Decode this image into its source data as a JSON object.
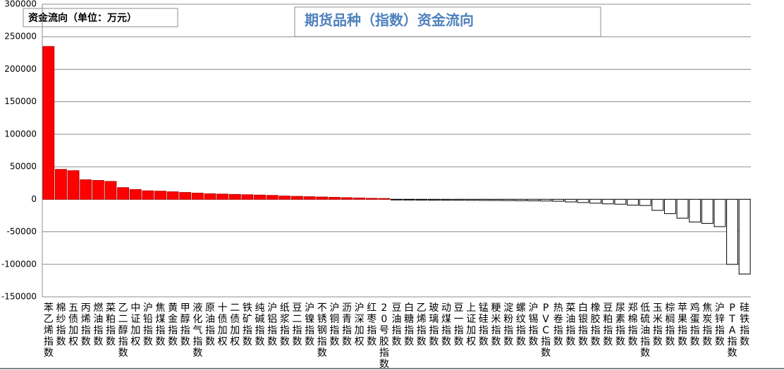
{
  "chart_data": {
    "type": "bar",
    "title": "期货品种（指数）资金流向",
    "unit_label": "资金流向（单位：万元）",
    "categories": [
      "苯乙烯指数",
      "棉纱指数",
      "五债加权",
      "丙烯指数",
      "燃油指数",
      "菜粕指数",
      "乙二醇指数",
      "中证加权",
      "沪铅指数",
      "焦煤指数",
      "黄金指数",
      "甲醇指数",
      "液化气指数",
      "原油指数",
      "十债加权",
      "二债加权",
      "铁矿指数",
      "纯碱指数",
      "沪铝指数",
      "纸浆指数",
      "豆二指数",
      "沪镍指数",
      "不锈钢指数",
      "沪铜指数",
      "沥青指数",
      "沪深加权",
      "红枣指数",
      "20号胶指数",
      "豆油指数",
      "白糖指数",
      "乙烯指数",
      "玻璃指数",
      "动煤指数",
      "豆一指数",
      "上证加权",
      "锰硅指数",
      "粳米指数",
      "淀粉指数",
      "螺纹指数",
      "沪锡指数",
      "PVC指数",
      "热卷指数",
      "菜油指数",
      "白银指数",
      "橡胶指数",
      "豆粕指数",
      "尿素指数",
      "郑棉指数",
      "低硫油指数",
      "玉米指数",
      "棕榈指数",
      "苹果指数",
      "鸡蛋指数",
      "焦炭指数",
      "沪锌指数",
      "PTA指数",
      "硅铁指数"
    ],
    "values": [
      235000,
      46000,
      44000,
      30000,
      29000,
      27500,
      18000,
      15000,
      13000,
      12500,
      11500,
      10500,
      9500,
      8500,
      8000,
      7500,
      7000,
      6500,
      6000,
      5000,
      4500,
      4000,
      3500,
      3000,
      2500,
      2000,
      1500,
      1200,
      -1000,
      -1100,
      -1200,
      -1300,
      -1400,
      -1500,
      -1600,
      -1700,
      -1800,
      -2000,
      -2200,
      -2400,
      -2600,
      -3000,
      -4000,
      -5000,
      -6000,
      -7000,
      -7500,
      -9000,
      -9500,
      -17000,
      -22000,
      -29000,
      -35000,
      -37000,
      -42000,
      -100000,
      -115000
    ],
    "colors": {
      "positive": "#ff0000",
      "negative": "#ffffff"
    },
    "ylim": [
      -150000,
      300000
    ],
    "yticks": [
      -150000,
      -100000,
      -50000,
      0,
      50000,
      100000,
      150000,
      200000,
      250000,
      300000
    ],
    "grid": true
  }
}
